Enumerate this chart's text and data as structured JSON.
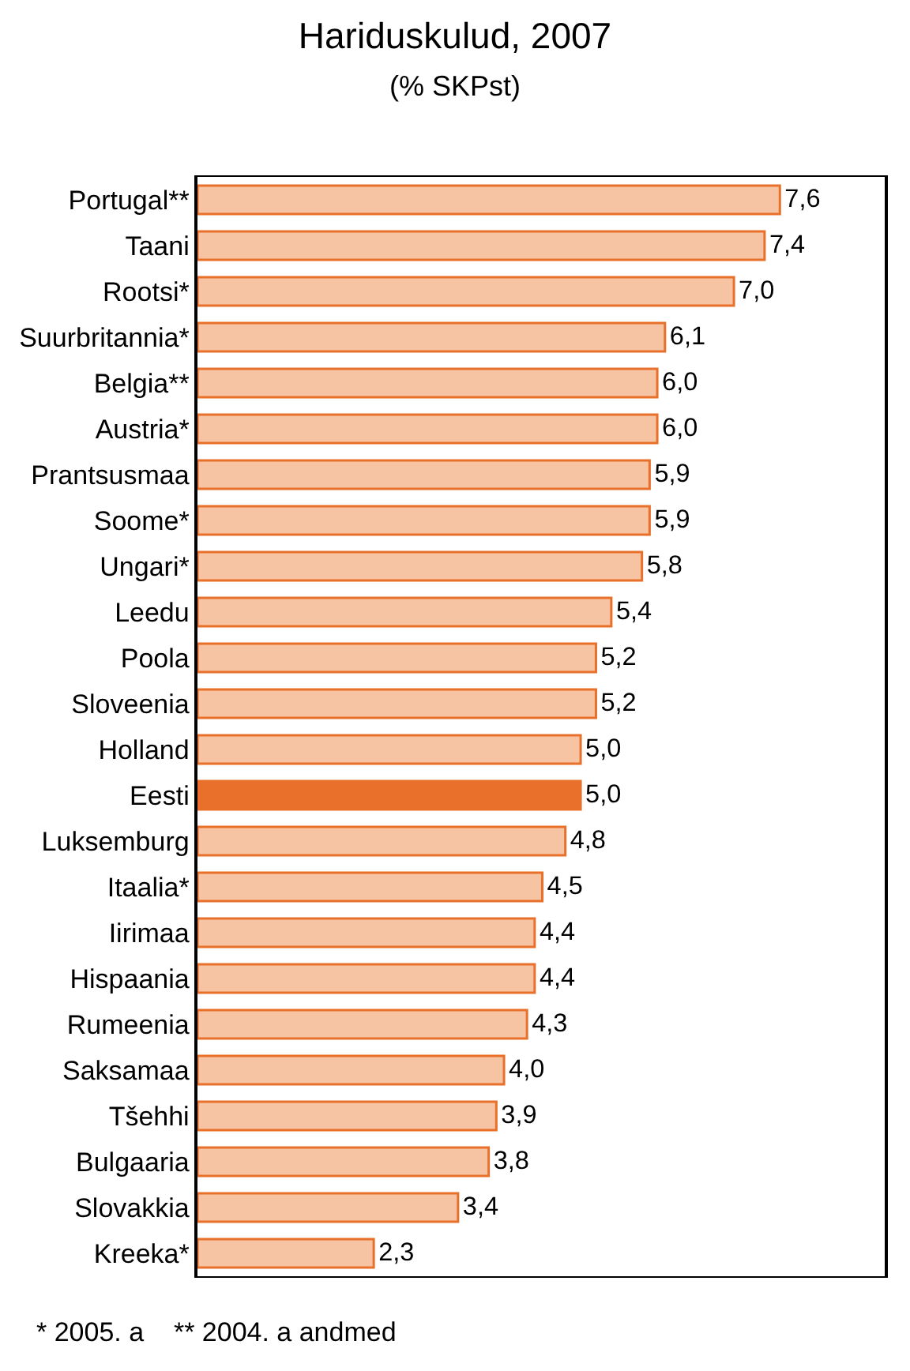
{
  "chart_data": {
    "type": "bar",
    "orientation": "horizontal",
    "title": "Hariduskulud, 2007",
    "subtitle": "(% SKPst)",
    "categories": [
      "Portugal**",
      "Taani",
      "Rootsi*",
      "Suurbritannia*",
      "Belgia**",
      "Austria*",
      "Prantsusmaa",
      "Soome*",
      "Ungari*",
      "Leedu",
      "Poola",
      "Sloveenia",
      "Holland",
      "Eesti",
      "Luksemburg",
      "Itaalia*",
      "Iirimaa",
      "Hispaania",
      "Rumeenia",
      "Saksamaa",
      "Tšehhi",
      "Bulgaaria",
      "Slovakkia",
      "Kreeka*"
    ],
    "values": [
      7.6,
      7.4,
      7.0,
      6.1,
      6.0,
      6.0,
      5.9,
      5.9,
      5.8,
      5.4,
      5.2,
      5.2,
      5.0,
      5.0,
      4.8,
      4.5,
      4.4,
      4.4,
      4.3,
      4.0,
      3.9,
      3.8,
      3.4,
      2.3
    ],
    "value_labels": [
      "7,6",
      "7,4",
      "7,0",
      "6,1",
      "6,0",
      "6,0",
      "5,9",
      "5,9",
      "5,8",
      "5,4",
      "5,2",
      "5,2",
      "5,0",
      "5,0",
      "4,8",
      "4,5",
      "4,4",
      "4,4",
      "4,3",
      "4,0",
      "3,9",
      "3,8",
      "3,4",
      "2,3"
    ],
    "color": "#e8702a",
    "colors": [
      "#f7c4a3",
      "#f7c4a3",
      "#f7c4a3",
      "#f7c4a3",
      "#f7c4a3",
      "#f7c4a3",
      "#f7c4a3",
      "#f7c4a3",
      "#f7c4a3",
      "#f7c4a3",
      "#f7c4a3",
      "#f7c4a3",
      "#f7c4a3",
      "#e8702a",
      "#f7c4a3",
      "#f7c4a3",
      "#f7c4a3",
      "#f7c4a3",
      "#f7c4a3",
      "#f7c4a3",
      "#f7c4a3",
      "#f7c4a3",
      "#f7c4a3",
      "#f7c4a3"
    ],
    "annotations": [
      "* 2005. a    ** 2004. a andmed"
    ],
    "legend": false
  }
}
